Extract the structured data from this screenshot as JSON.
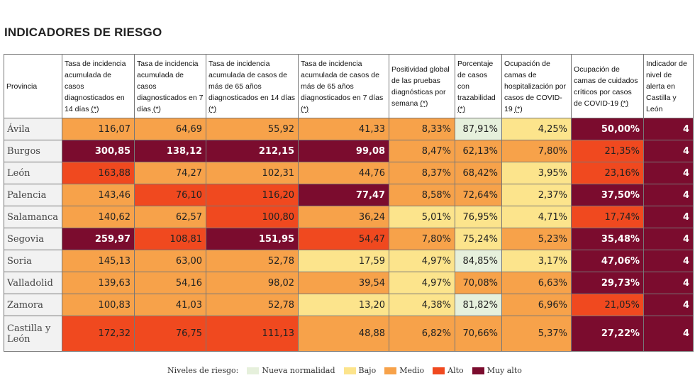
{
  "title": "INDICADORES DE RIESGO",
  "table": {
    "headers": [
      "Provincia",
      "Tasa de incidencia acumulada de casos diagnosticados en 14 días",
      "Tasa de incidencia acumulada de casos diagnosticados en 7 días",
      "Tasa de incidencia acumulada de casos de más de 65 años diagnosticados en 14 días",
      "Tasa de incidencia acumulada de casos de más de 65 años diagnosticados en 7 días",
      "Positividad global de las pruebas diagnósticas por semana",
      "Porcentaje de casos con trazabilidad",
      "Ocupación de camas de hospitalización por casos de COVID-19",
      "Ocupación de camas de cuidados críticos por casos de COVID-19",
      "Indicador de nivel de alerta en Castilla y León"
    ],
    "header_note": "(*)",
    "rows": [
      {
        "provincia": "Ávila",
        "values": [
          "116,07",
          "64,69",
          "55,92",
          "41,33",
          "8,33%",
          "87,91%",
          "4,25%",
          "50,00%",
          "4"
        ],
        "levels": [
          "medio",
          "medio",
          "medio",
          "medio",
          "medio",
          "mn",
          "bajo",
          "muy",
          "muy"
        ]
      },
      {
        "provincia": "Burgos",
        "values": [
          "300,85",
          "138,12",
          "212,15",
          "99,08",
          "8,47%",
          "62,13%",
          "7,80%",
          "21,35%",
          "4"
        ],
        "levels": [
          "muy",
          "muy",
          "muy",
          "muy",
          "medio",
          "medio",
          "medio",
          "alto",
          "muy"
        ]
      },
      {
        "provincia": "León",
        "values": [
          "163,88",
          "74,27",
          "102,31",
          "44,76",
          "8,37%",
          "68,42%",
          "3,95%",
          "23,16%",
          "4"
        ],
        "levels": [
          "alto",
          "medio",
          "medio",
          "medio",
          "medio",
          "medio",
          "bajo",
          "alto",
          "muy"
        ]
      },
      {
        "provincia": "Palencia",
        "values": [
          "143,46",
          "76,10",
          "116,20",
          "77,47",
          "8,58%",
          "72,64%",
          "2,37%",
          "37,50%",
          "4"
        ],
        "levels": [
          "medio",
          "alto",
          "alto",
          "muy",
          "medio",
          "medio",
          "bajo",
          "muy",
          "muy"
        ]
      },
      {
        "provincia": "Salamanca",
        "values": [
          "140,62",
          "62,57",
          "100,80",
          "36,24",
          "5,01%",
          "76,95%",
          "4,71%",
          "17,74%",
          "4"
        ],
        "levels": [
          "medio",
          "medio",
          "alto",
          "medio",
          "bajo",
          "bajo",
          "bajo",
          "alto",
          "muy"
        ]
      },
      {
        "provincia": "Segovia",
        "values": [
          "259,97",
          "108,81",
          "151,95",
          "54,47",
          "7,80%",
          "75,24%",
          "5,23%",
          "35,48%",
          "4"
        ],
        "levels": [
          "muy",
          "alto",
          "muy",
          "alto",
          "medio",
          "bajo",
          "medio",
          "muy",
          "muy"
        ]
      },
      {
        "provincia": "Soria",
        "values": [
          "145,13",
          "63,00",
          "52,78",
          "17,59",
          "4,97%",
          "84,85%",
          "3,17%",
          "47,06%",
          "4"
        ],
        "levels": [
          "medio",
          "medio",
          "medio",
          "bajo",
          "bajo",
          "mn",
          "bajo",
          "muy",
          "muy"
        ]
      },
      {
        "provincia": "Valladolid",
        "values": [
          "139,63",
          "54,16",
          "98,02",
          "39,54",
          "4,97%",
          "70,08%",
          "6,63%",
          "29,73%",
          "4"
        ],
        "levels": [
          "medio",
          "medio",
          "medio",
          "medio",
          "bajo",
          "medio",
          "medio",
          "muy",
          "muy"
        ]
      },
      {
        "provincia": "Zamora",
        "values": [
          "100,83",
          "41,03",
          "52,78",
          "13,20",
          "4,38%",
          "81,82%",
          "6,96%",
          "21,05%",
          "4"
        ],
        "levels": [
          "medio",
          "medio",
          "medio",
          "bajo",
          "bajo",
          "mn",
          "medio",
          "alto",
          "muy"
        ]
      },
      {
        "provincia": "Castilla y León",
        "values": [
          "172,32",
          "76,75",
          "111,13",
          "48,88",
          "6,82%",
          "70,66%",
          "5,37%",
          "27,22%",
          "4"
        ],
        "levels": [
          "alto",
          "alto",
          "alto",
          "medio",
          "medio",
          "medio",
          "medio",
          "muy",
          "muy"
        ]
      }
    ]
  },
  "legend": {
    "label": "Niveles de riesgo:",
    "items": [
      {
        "key": "mn",
        "label": "Nueva normalidad",
        "color": "#e6f0dc"
      },
      {
        "key": "bajo",
        "label": "Bajo",
        "color": "#fce48c"
      },
      {
        "key": "medio",
        "label": "Medio",
        "color": "#f7a24a"
      },
      {
        "key": "alto",
        "label": "Alto",
        "color": "#f0491f"
      },
      {
        "key": "muy",
        "label": "Muy alto",
        "color": "#7b0c2e"
      }
    ]
  }
}
